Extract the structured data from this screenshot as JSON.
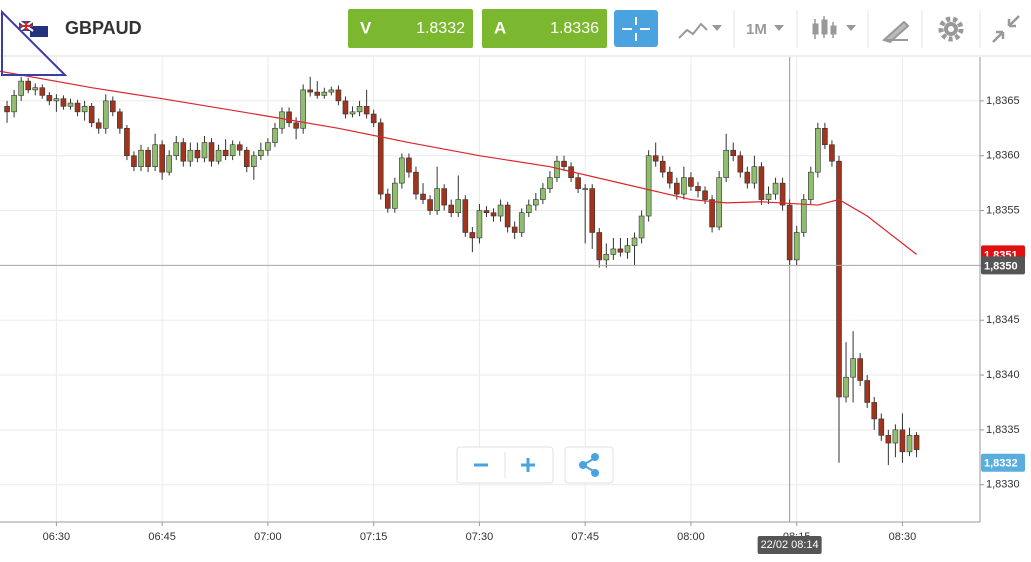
{
  "header": {
    "symbol": "GBPAUD",
    "bid_label": "V",
    "bid": "1.8332",
    "ask_label": "A",
    "ask": "1.8336",
    "period": "1M"
  },
  "chart_data": {
    "type": "candlestick",
    "ylim": [
      1.83266,
      1.8369
    ],
    "yticks": [
      {
        "value": 1.833,
        "label": "1,8330"
      },
      {
        "value": 1.8335,
        "label": "1,8335"
      },
      {
        "value": 1.834,
        "label": "1,8340"
      },
      {
        "value": 1.8345,
        "label": "1,8345"
      },
      {
        "value": 1.835,
        "label": "1,8350"
      },
      {
        "value": 1.8355,
        "label": "1,8355"
      },
      {
        "value": 1.836,
        "label": "1,8360"
      },
      {
        "value": 1.8365,
        "label": "1,8365"
      }
    ],
    "xlim": [
      "06:22",
      "08:41"
    ],
    "xticks": [
      "06:30",
      "06:45",
      "07:00",
      "07:15",
      "07:30",
      "07:45",
      "08:00",
      "08:15",
      "08:30"
    ],
    "up_color": "#8fbf6e",
    "down_color": "#a0341c",
    "grid": true,
    "x": [
      "06:23",
      "06:24",
      "06:25",
      "06:26",
      "06:27",
      "06:28",
      "06:29",
      "06:30",
      "06:31",
      "06:32",
      "06:33",
      "06:34",
      "06:35",
      "06:36",
      "06:37",
      "06:38",
      "06:39",
      "06:40",
      "06:41",
      "06:42",
      "06:43",
      "06:44",
      "06:45",
      "06:46",
      "06:47",
      "06:48",
      "06:49",
      "06:50",
      "06:51",
      "06:52",
      "06:53",
      "06:54",
      "06:55",
      "06:56",
      "06:57",
      "06:58",
      "06:59",
      "07:00",
      "07:01",
      "07:02",
      "07:03",
      "07:04",
      "07:05",
      "07:06",
      "07:07",
      "07:08",
      "07:09",
      "07:10",
      "07:11",
      "07:12",
      "07:13",
      "07:14",
      "07:15",
      "07:16",
      "07:17",
      "07:18",
      "07:19",
      "07:20",
      "07:21",
      "07:22",
      "07:23",
      "07:24",
      "07:25",
      "07:26",
      "07:27",
      "07:28",
      "07:29",
      "07:30",
      "07:31",
      "07:32",
      "07:33",
      "07:34",
      "07:35",
      "07:36",
      "07:37",
      "07:38",
      "07:39",
      "07:40",
      "07:41",
      "07:42",
      "07:43",
      "07:44",
      "07:45",
      "07:46",
      "07:47",
      "07:48",
      "07:49",
      "07:50",
      "07:51",
      "07:52",
      "07:53",
      "07:54",
      "07:55",
      "07:56",
      "07:57",
      "07:58",
      "07:59",
      "08:00",
      "08:01",
      "08:02",
      "08:03",
      "08:04",
      "08:05",
      "08:06",
      "08:07",
      "08:08",
      "08:09",
      "08:10",
      "08:11",
      "08:12",
      "08:13",
      "08:14",
      "08:15",
      "08:16",
      "08:17",
      "08:18",
      "08:19",
      "08:20",
      "08:21",
      "08:22",
      "08:23",
      "08:24",
      "08:25",
      "08:26",
      "08:27",
      "08:28",
      "08:29",
      "08:30",
      "08:31",
      "08:32"
    ],
    "candles": [
      [
        1.83645,
        1.8365,
        1.8363,
        1.8364
      ],
      [
        1.8364,
        1.8366,
        1.83635,
        1.83655
      ],
      [
        1.83655,
        1.83672,
        1.8365,
        1.83668
      ],
      [
        1.83668,
        1.83671,
        1.83657,
        1.8366
      ],
      [
        1.8366,
        1.83666,
        1.83655,
        1.83662
      ],
      [
        1.83662,
        1.83665,
        1.83652,
        1.83655
      ],
      [
        1.83655,
        1.83658,
        1.83646,
        1.8365
      ],
      [
        1.8365,
        1.83656,
        1.8364,
        1.83652
      ],
      [
        1.83652,
        1.83655,
        1.83642,
        1.83645
      ],
      [
        1.83645,
        1.83652,
        1.83642,
        1.83648
      ],
      [
        1.83648,
        1.83651,
        1.83636,
        1.8364
      ],
      [
        1.8364,
        1.8365,
        1.83632,
        1.83645
      ],
      [
        1.83645,
        1.83648,
        1.83626,
        1.8363
      ],
      [
        1.8363,
        1.83634,
        1.8362,
        1.83625
      ],
      [
        1.83625,
        1.83656,
        1.8362,
        1.8365
      ],
      [
        1.8365,
        1.83654,
        1.83636,
        1.8364
      ],
      [
        1.8364,
        1.83643,
        1.8362,
        1.83625
      ],
      [
        1.83625,
        1.83628,
        1.83596,
        1.836
      ],
      [
        1.836,
        1.83604,
        1.83586,
        1.8359
      ],
      [
        1.8359,
        1.8361,
        1.83586,
        1.83605
      ],
      [
        1.83605,
        1.83608,
        1.83585,
        1.8359
      ],
      [
        1.8359,
        1.8362,
        1.83586,
        1.8361
      ],
      [
        1.8361,
        1.83614,
        1.83578,
        1.83585
      ],
      [
        1.83585,
        1.83605,
        1.83582,
        1.836
      ],
      [
        1.836,
        1.83618,
        1.83596,
        1.83612
      ],
      [
        1.83612,
        1.83616,
        1.8359,
        1.83595
      ],
      [
        1.83595,
        1.83612,
        1.8359,
        1.83605
      ],
      [
        1.83605,
        1.83612,
        1.83594,
        1.83598
      ],
      [
        1.83598,
        1.83618,
        1.83594,
        1.83612
      ],
      [
        1.83612,
        1.83616,
        1.8359,
        1.83595
      ],
      [
        1.83595,
        1.8361,
        1.83592,
        1.83605
      ],
      [
        1.83605,
        1.83615,
        1.83596,
        1.836
      ],
      [
        1.836,
        1.83614,
        1.83596,
        1.8361
      ],
      [
        1.8361,
        1.83613,
        1.836,
        1.83605
      ],
      [
        1.83605,
        1.83608,
        1.83585,
        1.8359
      ],
      [
        1.8359,
        1.83604,
        1.83578,
        1.836
      ],
      [
        1.836,
        1.83612,
        1.83596,
        1.83605
      ],
      [
        1.83605,
        1.83616,
        1.836,
        1.83612
      ],
      [
        1.83612,
        1.8363,
        1.83608,
        1.83625
      ],
      [
        1.83625,
        1.83644,
        1.8362,
        1.8364
      ],
      [
        1.8364,
        1.83644,
        1.83626,
        1.8363
      ],
      [
        1.8363,
        1.83635,
        1.83615,
        1.83625
      ],
      [
        1.83625,
        1.83665,
        1.8362,
        1.8366
      ],
      [
        1.8366,
        1.83672,
        1.83654,
        1.83658
      ],
      [
        1.83658,
        1.83668,
        1.83652,
        1.83655
      ],
      [
        1.83655,
        1.83662,
        1.83652,
        1.83658
      ],
      [
        1.83658,
        1.83663,
        1.83655,
        1.8366
      ],
      [
        1.8366,
        1.83664,
        1.83646,
        1.8365
      ],
      [
        1.8365,
        1.83654,
        1.83634,
        1.83638
      ],
      [
        1.83638,
        1.83645,
        1.83635,
        1.8364
      ],
      [
        1.8364,
        1.8365,
        1.83636,
        1.83645
      ],
      [
        1.83645,
        1.8366,
        1.83634,
        1.83638
      ],
      [
        1.83638,
        1.83642,
        1.83626,
        1.8363
      ],
      [
        1.8363,
        1.83634,
        1.8356,
        1.83565
      ],
      [
        1.83565,
        1.8357,
        1.83548,
        1.83552
      ],
      [
        1.83552,
        1.8358,
        1.83548,
        1.83575
      ],
      [
        1.83575,
        1.83602,
        1.8357,
        1.83598
      ],
      [
        1.83598,
        1.83602,
        1.8358,
        1.83585
      ],
      [
        1.83585,
        1.8359,
        1.8356,
        1.83565
      ],
      [
        1.83565,
        1.83575,
        1.83556,
        1.8356
      ],
      [
        1.8356,
        1.83564,
        1.83546,
        1.8355
      ],
      [
        1.8355,
        1.8359,
        1.83546,
        1.8357
      ],
      [
        1.8357,
        1.83574,
        1.8355,
        1.83555
      ],
      [
        1.83555,
        1.8356,
        1.83544,
        1.83548
      ],
      [
        1.83548,
        1.83582,
        1.83544,
        1.8356
      ],
      [
        1.8356,
        1.83564,
        1.83526,
        1.8353
      ],
      [
        1.8353,
        1.83535,
        1.83512,
        1.83525
      ],
      [
        1.83525,
        1.83556,
        1.8352,
        1.8355
      ],
      [
        1.8355,
        1.83554,
        1.83544,
        1.83548
      ],
      [
        1.83548,
        1.83552,
        1.8354,
        1.83545
      ],
      [
        1.83545,
        1.8356,
        1.8354,
        1.83555
      ],
      [
        1.83555,
        1.83558,
        1.8353,
        1.83535
      ],
      [
        1.83535,
        1.8354,
        1.83524,
        1.8353
      ],
      [
        1.8353,
        1.83552,
        1.83526,
        1.83548
      ],
      [
        1.83548,
        1.8356,
        1.83544,
        1.83555
      ],
      [
        1.83555,
        1.83566,
        1.8355,
        1.8356
      ],
      [
        1.8356,
        1.83575,
        1.83556,
        1.8357
      ],
      [
        1.8357,
        1.83586,
        1.83566,
        1.8358
      ],
      [
        1.8358,
        1.836,
        1.83576,
        1.83595
      ],
      [
        1.83595,
        1.836,
        1.83586,
        1.8359
      ],
      [
        1.8359,
        1.83594,
        1.83576,
        1.8358
      ],
      [
        1.8358,
        1.83584,
        1.83566,
        1.8357
      ],
      [
        1.8357,
        1.83574,
        1.8352,
        1.8357
      ],
      [
        1.8357,
        1.83574,
        1.83515,
        1.8353
      ],
      [
        1.8353,
        1.83534,
        1.83498,
        1.83505
      ],
      [
        1.83505,
        1.8352,
        1.83498,
        1.8351
      ],
      [
        1.8351,
        1.83525,
        1.83505,
        1.83515
      ],
      [
        1.83515,
        1.83525,
        1.83508,
        1.83512
      ],
      [
        1.83512,
        1.83525,
        1.83506,
        1.83518
      ],
      [
        1.83518,
        1.8353,
        1.835,
        1.83525
      ],
      [
        1.83525,
        1.8355,
        1.8352,
        1.83545
      ],
      [
        1.83545,
        1.83605,
        1.8354,
        1.836
      ],
      [
        1.836,
        1.83612,
        1.8359,
        1.83595
      ],
      [
        1.83595,
        1.836,
        1.8358,
        1.83585
      ],
      [
        1.83585,
        1.8359,
        1.8357,
        1.83575
      ],
      [
        1.83575,
        1.8358,
        1.8356,
        1.83565
      ],
      [
        1.83565,
        1.8359,
        1.8356,
        1.8358
      ],
      [
        1.8358,
        1.83585,
        1.83568,
        1.83572
      ],
      [
        1.83572,
        1.83576,
        1.83562,
        1.83568
      ],
      [
        1.83568,
        1.83572,
        1.83556,
        1.8356
      ],
      [
        1.8356,
        1.83564,
        1.8353,
        1.83535
      ],
      [
        1.83535,
        1.83586,
        1.83532,
        1.8358
      ],
      [
        1.8358,
        1.8362,
        1.83576,
        1.83605
      ],
      [
        1.83605,
        1.83612,
        1.83595,
        1.836
      ],
      [
        1.836,
        1.83604,
        1.8358,
        1.83585
      ],
      [
        1.83585,
        1.8359,
        1.8357,
        1.83575
      ],
      [
        1.83575,
        1.836,
        1.8357,
        1.8359
      ],
      [
        1.8359,
        1.83594,
        1.83555,
        1.8356
      ],
      [
        1.8356,
        1.83572,
        1.83556,
        1.83565
      ],
      [
        1.83565,
        1.8358,
        1.8356,
        1.83575
      ],
      [
        1.83575,
        1.8358,
        1.8355,
        1.83555
      ],
      [
        1.83555,
        1.8356,
        1.835,
        1.83505
      ],
      [
        1.83505,
        1.83536,
        1.835,
        1.8353
      ],
      [
        1.8353,
        1.83565,
        1.83526,
        1.8356
      ],
      [
        1.8356,
        1.8359,
        1.83556,
        1.83585
      ],
      [
        1.83585,
        1.8363,
        1.8358,
        1.83625
      ],
      [
        1.83625,
        1.8363,
        1.83606,
        1.8361
      ],
      [
        1.8361,
        1.83614,
        1.8359,
        1.83595
      ],
      [
        1.83595,
        1.836,
        1.8332,
        1.8338
      ],
      [
        1.8338,
        1.8343,
        1.83375,
        1.83398
      ],
      [
        1.83398,
        1.8344,
        1.83375,
        1.83415
      ],
      [
        1.83415,
        1.8342,
        1.8339,
        1.83395
      ],
      [
        1.83395,
        1.834,
        1.8337,
        1.83375
      ],
      [
        1.83375,
        1.8338,
        1.8335,
        1.8336
      ],
      [
        1.8336,
        1.83365,
        1.8334,
        1.83345
      ],
      [
        1.83345,
        1.8335,
        1.83318,
        1.83338
      ],
      [
        1.83338,
        1.83355,
        1.83325,
        1.8335
      ],
      [
        1.8335,
        1.83365,
        1.8332,
        1.8333
      ],
      [
        1.8333,
        1.83352,
        1.83326,
        1.83345
      ],
      [
        1.83345,
        1.83348,
        1.83325,
        1.83332
      ]
    ],
    "ma": {
      "color": "#d9262b",
      "x": [
        "06:22",
        "06:35",
        "06:45",
        "07:00",
        "07:10",
        "07:20",
        "07:30",
        "07:40",
        "07:50",
        "08:00",
        "08:05",
        "08:10",
        "08:18",
        "08:21",
        "08:25",
        "08:32"
      ],
      "values": [
        1.83677,
        1.83662,
        1.83652,
        1.83636,
        1.83625,
        1.83612,
        1.836,
        1.8359,
        1.83575,
        1.8356,
        1.83557,
        1.83558,
        1.83555,
        1.8356,
        1.83545,
        1.8351
      ]
    },
    "price_lines": [
      {
        "value": 1.8351,
        "label": "1,8351",
        "color": "#e01010",
        "line": false
      },
      {
        "value": 1.835,
        "label": "1,8350",
        "color": "#555555",
        "line": true
      },
      {
        "value": 1.8332,
        "label": "1,8332",
        "color": "#5aaede",
        "line": false
      }
    ],
    "crosshair": {
      "x": "08:14",
      "label": "22/02 08:14"
    }
  }
}
